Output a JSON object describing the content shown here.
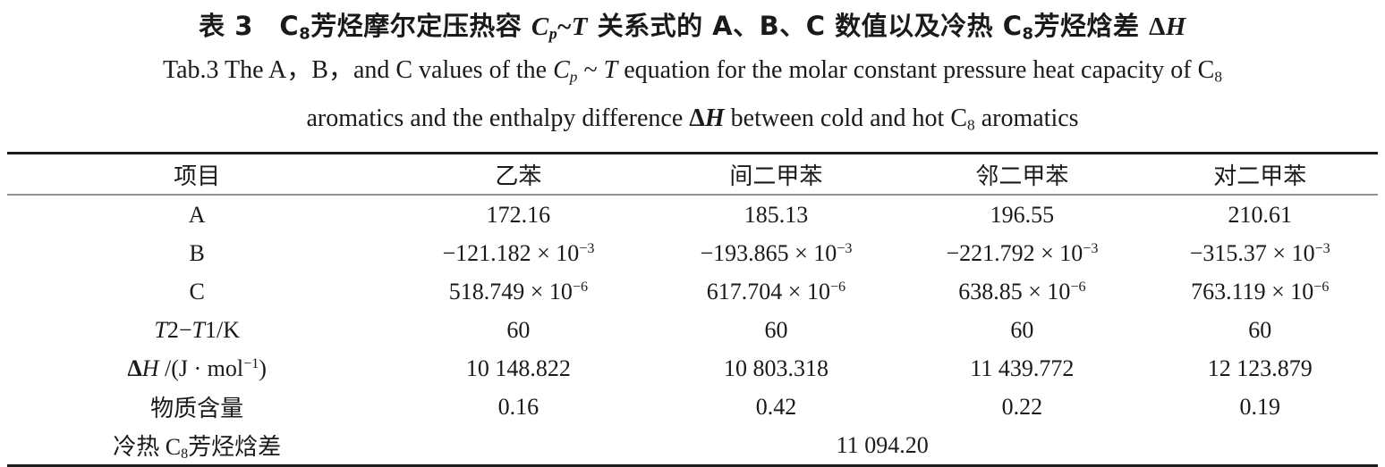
{
  "page": {
    "background": "#ffffff",
    "text_color": "#1a1a1a",
    "rule_color_dark": "#1c1c1c",
    "rule_color_light": "#949494"
  },
  "caption": {
    "zh": [
      {
        "t": "表 3　"
      },
      {
        "t": "C"
      },
      {
        "t": "8",
        "c": "sub"
      },
      {
        "t": "芳烃摩尔定压热容 "
      },
      {
        "t": "C",
        "c": "ser i"
      },
      {
        "t": "p",
        "c": "ser i sub"
      },
      {
        "t": "~",
        "c": "ser"
      },
      {
        "t": "T",
        "c": "ser i"
      },
      {
        "t": " 关系式的 A、B、C 数值以及冷热 C"
      },
      {
        "t": "8",
        "c": "sub"
      },
      {
        "t": "芳烃焓差 "
      },
      {
        "t": "Δ",
        "c": "ser"
      },
      {
        "t": "H",
        "c": "ser i"
      }
    ],
    "en_line1": [
      {
        "t": "Tab.3  The A，B，and C values of the "
      },
      {
        "t": "C",
        "c": "i"
      },
      {
        "t": "p",
        "c": "i sub"
      },
      {
        "t": " ~ "
      },
      {
        "t": "T",
        "c": "i"
      },
      {
        "t": "  equation for the molar constant pressure heat capacity of C"
      },
      {
        "t": "8",
        "c": "sub"
      }
    ],
    "en_line2": [
      {
        "t": "aromatics and the enthalpy difference  "
      },
      {
        "t": "Δ",
        "c": "b"
      },
      {
        "t": "H",
        "c": "b i"
      },
      {
        "t": "  between cold and hot C"
      },
      {
        "t": "8",
        "c": "sub"
      },
      {
        "t": " aromatics"
      }
    ]
  },
  "table": {
    "columns": [
      "项目",
      "乙苯",
      "间二甲苯",
      "邻二甲苯",
      "对二甲苯"
    ],
    "rows": [
      {
        "label": [
          {
            "t": "A"
          }
        ],
        "values": [
          [
            {
              "t": "172.16"
            }
          ],
          [
            {
              "t": "185.13"
            }
          ],
          [
            {
              "t": "196.55"
            }
          ],
          [
            {
              "t": "210.61"
            }
          ]
        ]
      },
      {
        "label": [
          {
            "t": "B"
          }
        ],
        "values": [
          [
            {
              "t": "−121.182 × 10"
            },
            {
              "t": "−3",
              "c": "sup"
            }
          ],
          [
            {
              "t": "−193.865 × 10"
            },
            {
              "t": "−3",
              "c": "sup"
            }
          ],
          [
            {
              "t": "−221.792 × 10"
            },
            {
              "t": "−3",
              "c": "sup"
            }
          ],
          [
            {
              "t": "−315.37 × 10"
            },
            {
              "t": "−3",
              "c": "sup"
            }
          ]
        ]
      },
      {
        "label": [
          {
            "t": "C"
          }
        ],
        "values": [
          [
            {
              "t": "518.749 × 10"
            },
            {
              "t": "−6",
              "c": "sup"
            }
          ],
          [
            {
              "t": "617.704 × 10"
            },
            {
              "t": "−6",
              "c": "sup"
            }
          ],
          [
            {
              "t": "638.85 × 10"
            },
            {
              "t": "−6",
              "c": "sup"
            }
          ],
          [
            {
              "t": "763.119 × 10"
            },
            {
              "t": "−6",
              "c": "sup"
            }
          ]
        ]
      },
      {
        "label": [
          {
            "t": "T",
            "c": "i"
          },
          {
            "t": "2−"
          },
          {
            "t": "T",
            "c": "i"
          },
          {
            "t": "1/K"
          }
        ],
        "values": [
          [
            {
              "t": "60"
            }
          ],
          [
            {
              "t": "60"
            }
          ],
          [
            {
              "t": "60"
            }
          ],
          [
            {
              "t": "60"
            }
          ]
        ]
      },
      {
        "label": [
          {
            "t": "Δ",
            "c": "b"
          },
          {
            "t": "H",
            "c": "i"
          },
          {
            "t": " /(J · mol"
          },
          {
            "t": "−1",
            "c": "sup"
          },
          {
            "t": ")"
          }
        ],
        "values": [
          [
            {
              "t": "10 148.822"
            }
          ],
          [
            {
              "t": "10 803.318"
            }
          ],
          [
            {
              "t": "11 439.772"
            }
          ],
          [
            {
              "t": "12 123.879"
            }
          ]
        ]
      },
      {
        "label": [
          {
            "t": "物质含量"
          }
        ],
        "values": [
          [
            {
              "t": "0.16"
            }
          ],
          [
            {
              "t": "0.42"
            }
          ],
          [
            {
              "t": "0.22"
            }
          ],
          [
            {
              "t": "0.19"
            }
          ]
        ]
      }
    ],
    "span_row": {
      "label": [
        {
          "t": "冷热 C"
        },
        {
          "t": "8",
          "c": "sub"
        },
        {
          "t": "芳烃焓差"
        }
      ],
      "value": [
        {
          "t": "11 094.20"
        }
      ]
    }
  }
}
